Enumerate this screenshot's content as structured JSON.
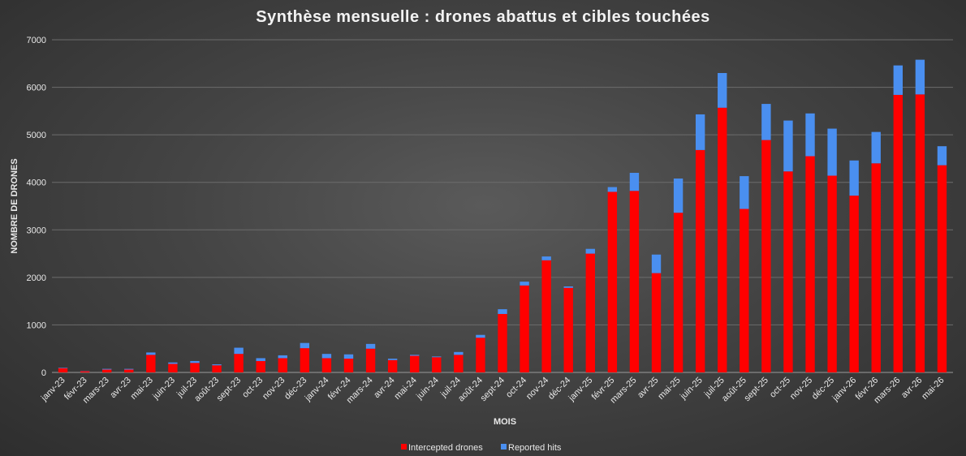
{
  "chart_data": {
    "type": "bar",
    "stacked": true,
    "title": "Synthèse mensuelle : drones abattus et cibles touchées",
    "xlabel": "MOIS",
    "ylabel": "NOMBRE DE DRONES",
    "ylim": [
      0,
      7000
    ],
    "yticks": [
      0,
      1000,
      2000,
      3000,
      4000,
      5000,
      6000,
      7000
    ],
    "grid": true,
    "legend_position": "bottom",
    "categories": [
      "janv-23",
      "févr-23",
      "mars-23",
      "avr-23",
      "mai-23",
      "juin-23",
      "juil-23",
      "août-23",
      "sept-23",
      "oct-23",
      "nov-23",
      "déc-23",
      "janv-24",
      "févr-24",
      "mars-24",
      "avr-24",
      "mai-24",
      "juin-24",
      "juil-24",
      "août-24",
      "sept-24",
      "oct-24",
      "nov-24",
      "déc-24",
      "janv-25",
      "févr-25",
      "mars-25",
      "avr-25",
      "mai-25",
      "juin-25",
      "juil-25",
      "août-25",
      "sept-25",
      "oct-25",
      "nov-25",
      "déc-25",
      "janv-26",
      "févr-26",
      "mars-26",
      "avr-26",
      "mai-26"
    ],
    "series": [
      {
        "name": "Intercepted drones",
        "color": "#ff0000",
        "values": [
          90,
          25,
          60,
          60,
          370,
          180,
          200,
          150,
          390,
          240,
          300,
          510,
          300,
          290,
          500,
          260,
          350,
          320,
          370,
          730,
          1230,
          1830,
          2360,
          1780,
          2500,
          3800,
          3820,
          2090,
          3360,
          4680,
          5570,
          3440,
          4890,
          4230,
          4550,
          4140,
          3720,
          4400,
          5840,
          5850,
          4360
        ]
      },
      {
        "name": "Reported hits",
        "color": "#4a8ff0",
        "values": [
          10,
          5,
          15,
          15,
          50,
          30,
          40,
          20,
          130,
          60,
          60,
          110,
          90,
          90,
          100,
          30,
          20,
          15,
          60,
          60,
          100,
          80,
          80,
          30,
          100,
          100,
          380,
          390,
          720,
          750,
          730,
          690,
          760,
          1070,
          900,
          990,
          740,
          660,
          620,
          730,
          400
        ]
      }
    ]
  }
}
